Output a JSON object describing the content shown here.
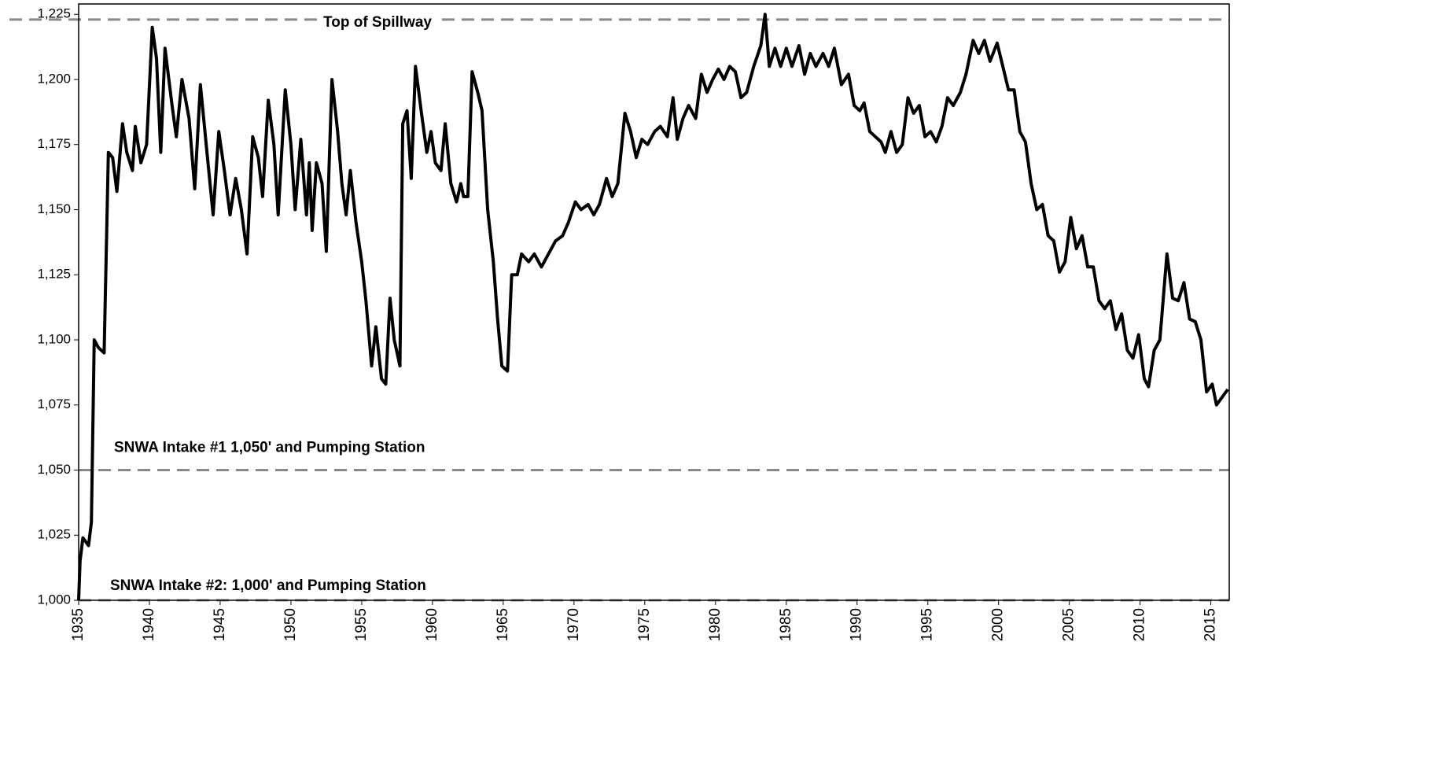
{
  "chart_data": {
    "type": "line",
    "x": [
      1935.0,
      1935.1,
      1935.3,
      1935.7,
      1935.9,
      1936.1,
      1936.4,
      1936.8,
      1937.1,
      1937.4,
      1937.7,
      1938.1,
      1938.4,
      1938.8,
      1939.0,
      1939.4,
      1939.8,
      1940.2,
      1940.5,
      1940.8,
      1941.1,
      1941.6,
      1941.9,
      1942.3,
      1942.8,
      1943.2,
      1943.6,
      1944.1,
      1944.5,
      1944.9,
      1945.3,
      1945.7,
      1946.1,
      1946.5,
      1946.9,
      1947.3,
      1947.7,
      1948.0,
      1948.4,
      1948.8,
      1949.1,
      1949.6,
      1950.0,
      1950.3,
      1950.7,
      1951.1,
      1951.3,
      1951.5,
      1951.8,
      1952.2,
      1952.5,
      1952.9,
      1953.3,
      1953.6,
      1953.9,
      1954.2,
      1954.6,
      1955.0,
      1955.3,
      1955.7,
      1956.0,
      1956.4,
      1956.7,
      1957.0,
      1957.3,
      1957.7,
      1957.9,
      1958.2,
      1958.5,
      1958.8,
      1959.2,
      1959.6,
      1959.9,
      1960.2,
      1960.6,
      1960.9,
      1961.3,
      1961.7,
      1962.0,
      1962.2,
      1962.5,
      1962.8,
      1963.2,
      1963.5,
      1963.9,
      1964.3,
      1964.6,
      1964.9,
      1965.3,
      1965.6,
      1966.0,
      1966.3,
      1966.8,
      1967.2,
      1967.7,
      1968.2,
      1968.7,
      1969.2,
      1969.6,
      1970.1,
      1970.5,
      1971.0,
      1971.4,
      1971.8,
      1972.3,
      1972.7,
      1973.1,
      1973.6,
      1974.0,
      1974.4,
      1974.8,
      1975.2,
      1975.7,
      1976.1,
      1976.6,
      1977.0,
      1977.3,
      1977.7,
      1978.1,
      1978.6,
      1979.0,
      1979.4,
      1979.8,
      1980.2,
      1980.6,
      1981.0,
      1981.4,
      1981.8,
      1982.2,
      1982.7,
      1983.2,
      1983.5,
      1983.8,
      1984.2,
      1984.6,
      1985.0,
      1985.4,
      1985.9,
      1986.3,
      1986.7,
      1987.1,
      1987.6,
      1988.0,
      1988.4,
      1988.9,
      1989.4,
      1989.8,
      1990.2,
      1990.5,
      1990.9,
      1991.3,
      1991.7,
      1992.0,
      1992.4,
      1992.8,
      1993.2,
      1993.6,
      1994.0,
      1994.4,
      1994.8,
      1995.2,
      1995.6,
      1996.0,
      1996.4,
      1996.8,
      1997.3,
      1997.7,
      1998.2,
      1998.6,
      1999.0,
      1999.4,
      1999.9,
      2000.3,
      2000.7,
      2001.1,
      2001.5,
      2001.9,
      2002.3,
      2002.7,
      2003.1,
      2003.5,
      2003.9,
      2004.3,
      2004.7,
      2005.1,
      2005.5,
      2005.9,
      2006.3,
      2006.7,
      2007.1,
      2007.5,
      2007.9,
      2008.3,
      2008.7,
      2009.1,
      2009.5,
      2009.9,
      2010.3,
      2010.6,
      2011.0,
      2011.4,
      2011.9,
      2012.3,
      2012.7,
      2013.1,
      2013.5,
      2013.9,
      2014.3,
      2014.7,
      2015.1,
      2015.4,
      2015.8,
      2016.2
    ],
    "series": [
      {
        "color": "#000000",
        "values": [
          1000,
          1015,
          1024,
          1021,
          1030,
          1100,
          1097,
          1095,
          1172,
          1170,
          1157,
          1183,
          1172,
          1165,
          1182,
          1168,
          1175,
          1220,
          1208,
          1172,
          1212,
          1190,
          1178,
          1200,
          1185,
          1158,
          1198,
          1170,
          1148,
          1180,
          1165,
          1148,
          1162,
          1150,
          1133,
          1178,
          1170,
          1155,
          1192,
          1175,
          1148,
          1196,
          1175,
          1150,
          1177,
          1148,
          1168,
          1142,
          1168,
          1160,
          1134,
          1200,
          1180,
          1160,
          1148,
          1165,
          1145,
          1130,
          1115,
          1090,
          1105,
          1085,
          1083,
          1116,
          1100,
          1090,
          1183,
          1188,
          1162,
          1205,
          1188,
          1172,
          1180,
          1168,
          1165,
          1183,
          1160,
          1153,
          1160,
          1155,
          1155,
          1203,
          1195,
          1188,
          1150,
          1130,
          1108,
          1090,
          1088,
          1125,
          1125,
          1133,
          1130,
          1133,
          1128,
          1133,
          1138,
          1140,
          1145,
          1153,
          1150,
          1152,
          1148,
          1152,
          1162,
          1155,
          1160,
          1187,
          1180,
          1170,
          1177,
          1175,
          1180,
          1182,
          1178,
          1193,
          1177,
          1185,
          1190,
          1185,
          1202,
          1195,
          1200,
          1204,
          1200,
          1205,
          1203,
          1193,
          1195,
          1205,
          1213,
          1225,
          1205,
          1212,
          1205,
          1212,
          1205,
          1213,
          1202,
          1210,
          1205,
          1210,
          1205,
          1212,
          1198,
          1202,
          1190,
          1188,
          1191,
          1180,
          1178,
          1176,
          1172,
          1180,
          1172,
          1175,
          1193,
          1187,
          1190,
          1178,
          1180,
          1176,
          1182,
          1193,
          1190,
          1195,
          1202,
          1215,
          1210,
          1215,
          1207,
          1214,
          1205,
          1196,
          1196,
          1180,
          1176,
          1160,
          1150,
          1152,
          1140,
          1138,
          1126,
          1130,
          1147,
          1135,
          1140,
          1128,
          1128,
          1115,
          1112,
          1115,
          1104,
          1110,
          1096,
          1093,
          1102,
          1085,
          1082,
          1096,
          1100,
          1133,
          1116,
          1115,
          1122,
          1108,
          1107,
          1100,
          1080,
          1083,
          1075,
          1078,
          1081
        ]
      }
    ],
    "xlim": [
      1935,
      2016.3
    ],
    "ylim": [
      1000,
      1229
    ],
    "xticks": [
      1935,
      1940,
      1945,
      1950,
      1955,
      1960,
      1965,
      1970,
      1975,
      1980,
      1985,
      1990,
      1995,
      2000,
      2005,
      2010,
      2015
    ],
    "yticks": [
      {
        "value": 1000,
        "label": "1,000"
      },
      {
        "value": 1025,
        "label": "1,025"
      },
      {
        "value": 1050,
        "label": "1,050"
      },
      {
        "value": 1075,
        "label": "1,075"
      },
      {
        "value": 1100,
        "label": "1,100"
      },
      {
        "value": 1125,
        "label": "1,125"
      },
      {
        "value": 1150,
        "label": "1,150"
      },
      {
        "value": 1175,
        "label": "1,175"
      },
      {
        "value": 1200,
        "label": "1,200"
      },
      {
        "value": 1225,
        "label": "1,225"
      }
    ],
    "reference_lines": [
      {
        "value": 1223,
        "label": "Top of Spillway"
      },
      {
        "value": 1050,
        "label": "SNWA  Intake #1  1,050' and Pumping  Station"
      },
      {
        "value": 1000,
        "label": "SNWA  Intake #2:  1,000' and Pumping  Station"
      }
    ],
    "reference_color": "#888888"
  }
}
